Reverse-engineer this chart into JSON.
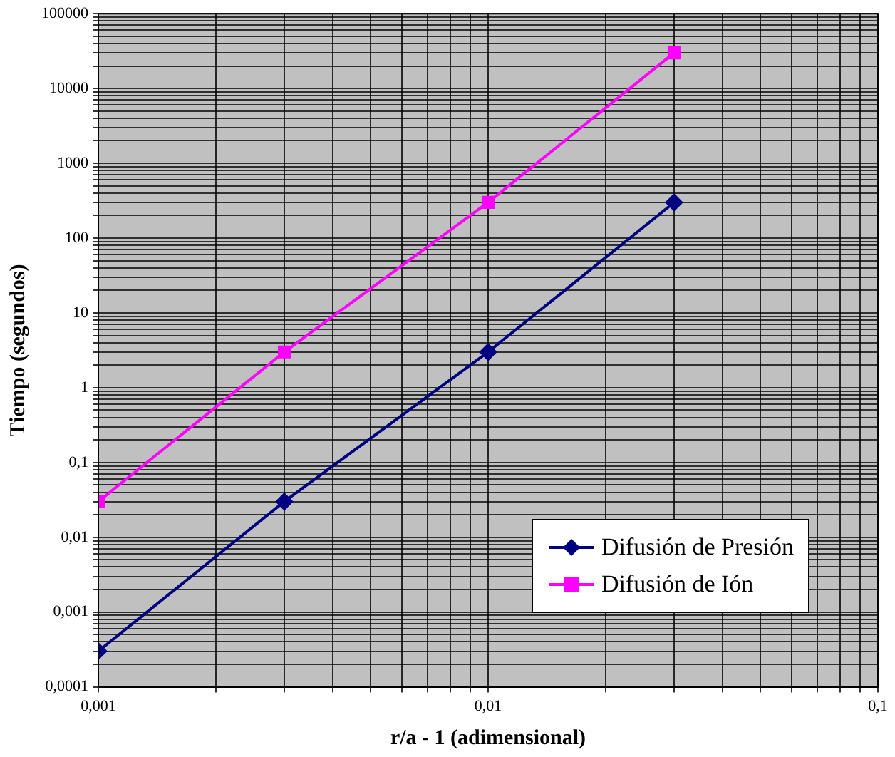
{
  "chart_data": {
    "type": "line",
    "xlabel": "r/a - 1 (adimensional)",
    "ylabel": "Tiempo (segundos)",
    "log": "xy",
    "grid": true,
    "legend": "bottom right",
    "line_style": "solid",
    "x": [
      0.001,
      0.003,
      0.01,
      0.03
    ],
    "series": [
      {
        "name": "Difusión de Presión",
        "color": "#000080",
        "marker": "diamond",
        "values": [
          0.0003,
          0.03,
          3,
          300
        ]
      },
      {
        "name": "Difusión de Ión",
        "color": "#ff00ff",
        "marker": "square",
        "values": [
          0.03,
          3,
          300,
          30000
        ]
      }
    ],
    "xlim": [
      0.001,
      0.1
    ],
    "xticks": [
      {
        "value": 0.001,
        "label": "0,001"
      },
      {
        "value": 0.002,
        "label": null
      },
      {
        "value": 0.003,
        "label": null
      },
      {
        "value": 0.004,
        "label": null
      },
      {
        "value": 0.005,
        "label": null
      },
      {
        "value": 0.006,
        "label": null
      },
      {
        "value": 0.007,
        "label": null
      },
      {
        "value": 0.008,
        "label": null
      },
      {
        "value": 0.009,
        "label": null
      },
      {
        "value": 0.01,
        "label": "0,01"
      },
      {
        "value": 0.02,
        "label": null
      },
      {
        "value": 0.03,
        "label": null
      },
      {
        "value": 0.04,
        "label": null
      },
      {
        "value": 0.05,
        "label": null
      },
      {
        "value": 0.06,
        "label": null
      },
      {
        "value": 0.07,
        "label": null
      },
      {
        "value": 0.08,
        "label": null
      },
      {
        "value": 0.09,
        "label": null
      },
      {
        "value": 0.1,
        "label": "0,1"
      }
    ],
    "ylim": [
      0.0001,
      100000
    ],
    "yticks": [
      {
        "value": 0.0001,
        "label": "0,0001"
      },
      {
        "value": 0.0002,
        "label": null
      },
      {
        "value": 0.0003,
        "label": null
      },
      {
        "value": 0.0004,
        "label": null
      },
      {
        "value": 0.0005,
        "label": null
      },
      {
        "value": 0.0006,
        "label": null
      },
      {
        "value": 0.0007,
        "label": null
      },
      {
        "value": 0.0008,
        "label": null
      },
      {
        "value": 0.0009,
        "label": null
      },
      {
        "value": 0.001,
        "label": "0,001"
      },
      {
        "value": 0.002,
        "label": null
      },
      {
        "value": 0.003,
        "label": null
      },
      {
        "value": 0.004,
        "label": null
      },
      {
        "value": 0.005,
        "label": null
      },
      {
        "value": 0.006,
        "label": null
      },
      {
        "value": 0.007,
        "label": null
      },
      {
        "value": 0.008,
        "label": null
      },
      {
        "value": 0.009,
        "label": null
      },
      {
        "value": 0.01,
        "label": "0,01"
      },
      {
        "value": 0.02,
        "label": null
      },
      {
        "value": 0.03,
        "label": null
      },
      {
        "value": 0.04,
        "label": null
      },
      {
        "value": 0.05,
        "label": null
      },
      {
        "value": 0.06,
        "label": null
      },
      {
        "value": 0.07,
        "label": null
      },
      {
        "value": 0.08,
        "label": null
      },
      {
        "value": 0.09,
        "label": null
      },
      {
        "value": 0.1,
        "label": "0,1"
      },
      {
        "value": 0.2,
        "label": null
      },
      {
        "value": 0.3,
        "label": null
      },
      {
        "value": 0.4,
        "label": null
      },
      {
        "value": 0.5,
        "label": null
      },
      {
        "value": 0.6,
        "label": null
      },
      {
        "value": 0.7,
        "label": null
      },
      {
        "value": 0.8,
        "label": null
      },
      {
        "value": 0.9,
        "label": null
      },
      1,
      {
        "value": 2,
        "label": null
      },
      {
        "value": 3,
        "label": null
      },
      {
        "value": 4,
        "label": null
      },
      {
        "value": 5,
        "label": null
      },
      {
        "value": 6,
        "label": null
      },
      {
        "value": 7,
        "label": null
      },
      {
        "value": 8,
        "label": null
      },
      {
        "value": 9,
        "label": null
      },
      10,
      {
        "value": 20,
        "label": null
      },
      {
        "value": 30,
        "label": null
      },
      {
        "value": 40,
        "label": null
      },
      {
        "value": 50,
        "label": null
      },
      {
        "value": 60,
        "label": null
      },
      {
        "value": 70,
        "label": null
      },
      {
        "value": 80,
        "label": null
      },
      {
        "value": 90,
        "label": null
      },
      100,
      {
        "value": 200,
        "label": null
      },
      {
        "value": 300,
        "label": null
      },
      {
        "value": 400,
        "label": null
      },
      {
        "value": 500,
        "label": null
      },
      {
        "value": 600,
        "label": null
      },
      {
        "value": 700,
        "label": null
      },
      {
        "value": 800,
        "label": null
      },
      {
        "value": 900,
        "label": null
      },
      1000,
      {
        "value": 2000,
        "label": null
      },
      {
        "value": 3000,
        "label": null
      },
      {
        "value": 4000,
        "label": null
      },
      {
        "value": 5000,
        "label": null
      },
      {
        "value": 6000,
        "label": null
      },
      {
        "value": 7000,
        "label": null
      },
      {
        "value": 8000,
        "label": null
      },
      {
        "value": 9000,
        "label": null
      },
      10000,
      {
        "value": 20000,
        "label": null
      },
      {
        "value": 30000,
        "label": null
      },
      {
        "value": 40000,
        "label": null
      },
      {
        "value": 50000,
        "label": null
      },
      {
        "value": 60000,
        "label": null
      },
      {
        "value": 70000,
        "label": null
      },
      {
        "value": 80000,
        "label": null
      },
      {
        "value": 90000,
        "label": null
      },
      100000
    ]
  }
}
